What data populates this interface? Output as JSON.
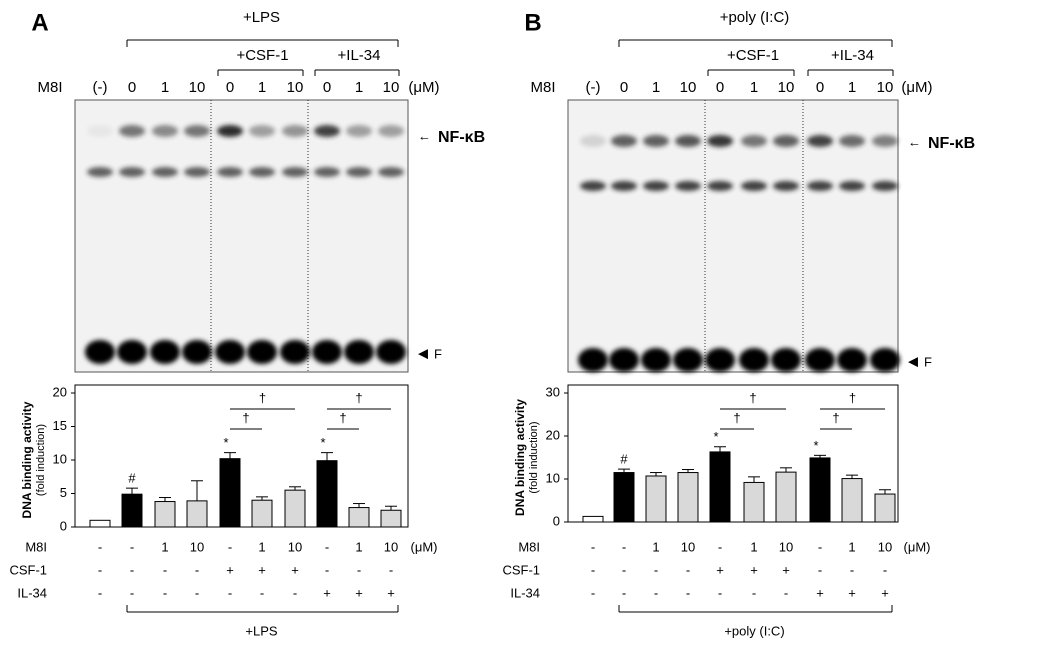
{
  "chart_data": [
    {
      "type": "bar",
      "panel": "A",
      "header_labels": [
        "M8I",
        "(-)",
        "0",
        "1",
        "10",
        "0",
        "1",
        "10",
        "0",
        "1",
        "10",
        "(μM)"
      ],
      "top_label": "+LPS",
      "sub_labels": [
        "+CSF-1",
        "+IL-34"
      ],
      "band_labels": [
        "NF-κB",
        "F"
      ],
      "y_label": [
        "DNA binding activity",
        "(fold induction)"
      ],
      "categories": [
        null,
        null,
        null,
        null,
        null,
        null,
        null,
        null,
        null,
        null
      ],
      "values": [
        1,
        4.9,
        3.8,
        3.9,
        10.2,
        4.0,
        5.5,
        9.9,
        2.9,
        2.5
      ],
      "errors": [
        0,
        0.9,
        0.6,
        3.0,
        0.9,
        0.5,
        0.5,
        1.2,
        0.6,
        0.6
      ],
      "colors": [
        "#ffffff",
        "#000000",
        "#d9d9d9",
        "#d9d9d9",
        "#000000",
        "#d9d9d9",
        "#d9d9d9",
        "#000000",
        "#d9d9d9",
        "#d9d9d9"
      ],
      "ylim": [
        0,
        20
      ],
      "yticks": [
        0,
        5,
        10,
        15,
        20
      ],
      "annotations": [
        {
          "text": "#",
          "bar": 1
        },
        {
          "text": "*",
          "bar": 4
        },
        {
          "text": "*",
          "bar": 7
        }
      ],
      "comparisons": [
        {
          "text": "†",
          "from": 4,
          "to": 5
        },
        {
          "text": "†",
          "from": 4,
          "to": 6
        },
        {
          "text": "†",
          "from": 7,
          "to": 8
        },
        {
          "text": "†",
          "from": 7,
          "to": 9
        }
      ],
      "rows": [
        {
          "label": "M8I",
          "cells": [
            "-",
            "-",
            "1",
            "10",
            "-",
            "1",
            "10",
            "-",
            "1",
            "10"
          ],
          "unit": "(μM)"
        },
        {
          "label": "CSF-1",
          "cells": [
            "-",
            "-",
            "-",
            "-",
            "+",
            "+",
            "+",
            "-",
            "-",
            "-"
          ]
        },
        {
          "label": "IL-34",
          "cells": [
            "-",
            "-",
            "-",
            "-",
            "-",
            "-",
            "-",
            "+",
            "+",
            "+"
          ]
        }
      ],
      "bottom_label": "+LPS"
    },
    {
      "type": "bar",
      "panel": "B",
      "header_labels": [
        "M8I",
        "(-)",
        "0",
        "1",
        "10",
        "0",
        "1",
        "10",
        "0",
        "1",
        "10",
        "(μM)"
      ],
      "top_label": "+poly (I:C)",
      "sub_labels": [
        "+CSF-1",
        "+IL-34"
      ],
      "band_labels": [
        "NF-κB",
        "F"
      ],
      "y_label": [
        "DNA binding activity",
        "(fold induction)"
      ],
      "categories": [
        null,
        null,
        null,
        null,
        null,
        null,
        null,
        null,
        null,
        null
      ],
      "values": [
        1.3,
        11.5,
        10.7,
        11.5,
        16.3,
        9.2,
        11.6,
        14.9,
        10.1,
        6.5
      ],
      "errors": [
        0,
        0.8,
        0.8,
        0.7,
        1.2,
        1.3,
        1.0,
        0.6,
        0.8,
        1.0
      ],
      "colors": [
        "#ffffff",
        "#000000",
        "#d9d9d9",
        "#d9d9d9",
        "#000000",
        "#d9d9d9",
        "#d9d9d9",
        "#000000",
        "#d9d9d9",
        "#d9d9d9"
      ],
      "ylim": [
        0,
        30
      ],
      "yticks": [
        0,
        10,
        20,
        30
      ],
      "annotations": [
        {
          "text": "#",
          "bar": 1
        },
        {
          "text": "*",
          "bar": 4
        },
        {
          "text": "*",
          "bar": 7
        }
      ],
      "comparisons": [
        {
          "text": "†",
          "from": 4,
          "to": 5
        },
        {
          "text": "†",
          "from": 4,
          "to": 6
        },
        {
          "text": "†",
          "from": 7,
          "to": 8
        },
        {
          "text": "†",
          "from": 7,
          "to": 9
        }
      ],
      "rows": [
        {
          "label": "M8I",
          "cells": [
            "-",
            "-",
            "1",
            "10",
            "-",
            "1",
            "10",
            "-",
            "1",
            "10"
          ],
          "unit": "(μM)"
        },
        {
          "label": "CSF-1",
          "cells": [
            "-",
            "-",
            "-",
            "-",
            "+",
            "+",
            "+",
            "-",
            "-",
            "-"
          ]
        },
        {
          "label": "IL-34",
          "cells": [
            "-",
            "-",
            "-",
            "-",
            "-",
            "-",
            "-",
            "+",
            "+",
            "+"
          ]
        }
      ],
      "bottom_label": "+poly (I:C)"
    }
  ]
}
